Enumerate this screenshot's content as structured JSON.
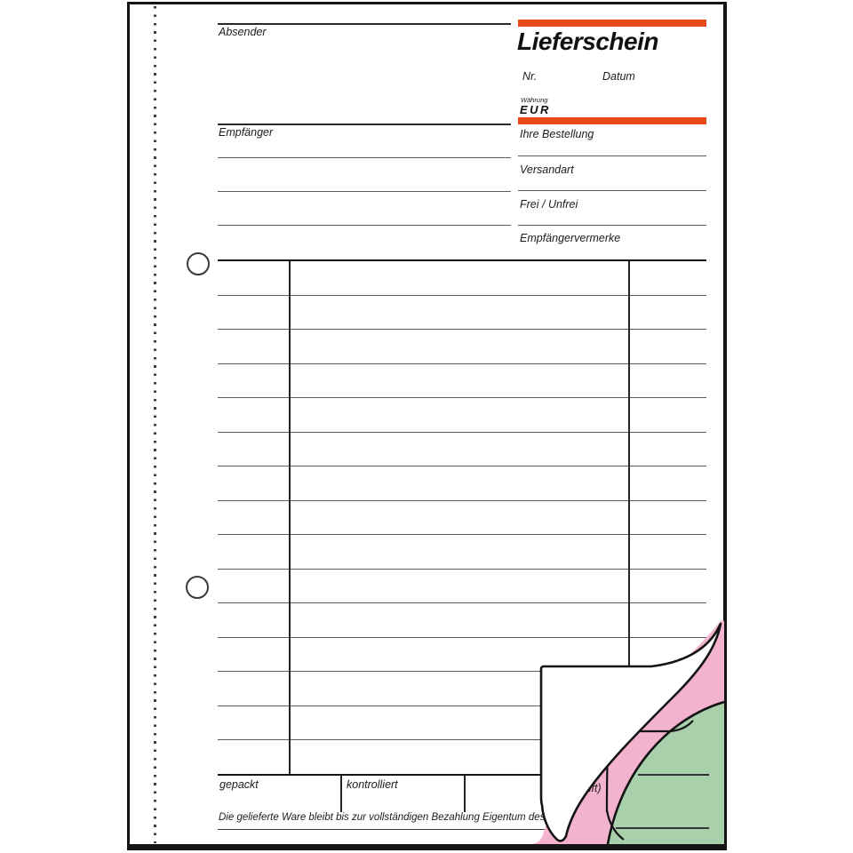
{
  "form": {
    "title": "Lieferschein",
    "sender_label": "Absender",
    "recipient_label": "Empfänger",
    "number_label": "Nr.",
    "date_label": "Datum",
    "currency_label": "Währung",
    "currency_value": "EUR",
    "right_fields": [
      {
        "label": "Ihre Bestellung"
      },
      {
        "label": "Versandart"
      },
      {
        "label": "Frei / Unfrei"
      },
      {
        "label": "Empfängervermerke"
      }
    ],
    "footer_fields": {
      "packed_label": "gepackt",
      "checked_label": "kontrolliert",
      "signature_fragment_visible": "rschrift)"
    },
    "ownership_notice": "Die gelieferte Ware bleibt bis zur vollständigen Bezahlung Eigentum des Lieferanten.",
    "table": {
      "rows": 15,
      "columns": 3
    },
    "copy_sheets": [
      "white",
      "pink",
      "green"
    ],
    "colors": {
      "accent_orange": "#E8491B",
      "copy_pink": "#F3B2CE",
      "copy_green": "#A8D0AA",
      "line_dark": "#141414"
    }
  }
}
